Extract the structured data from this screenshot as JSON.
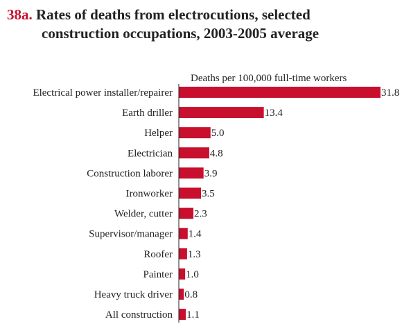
{
  "title": {
    "number": "38a.",
    "line1": "Rates of deaths from electrocutions, selected",
    "line2": "construction occupations, 2003-2005 average"
  },
  "colors": {
    "bar": "#c8102e",
    "title_number": "#c8102e",
    "axis": "#222222"
  },
  "chart_data": {
    "type": "bar",
    "orientation": "horizontal",
    "title": "Rates of deaths from electrocutions, selected construction occupations, 2003-2005 average",
    "xlabel": "Deaths per 100,000 full-time workers",
    "ylabel": "",
    "categories": [
      "Electrical power installer/repairer",
      "Earth driller",
      "Helper",
      "Electrician",
      "Construction laborer",
      "Ironworker",
      "Welder, cutter",
      "Supervisor/manager",
      "Roofer",
      "Painter",
      "Heavy truck driver",
      "All construction"
    ],
    "values": [
      31.8,
      13.4,
      5.0,
      4.8,
      3.9,
      3.5,
      2.3,
      1.4,
      1.3,
      1.0,
      0.8,
      1.1
    ],
    "value_labels": [
      "31.8",
      "13.4",
      "5.0",
      "4.8",
      "3.9",
      "3.5",
      "2.3",
      "1.4",
      "1.3",
      "1.0",
      "0.8",
      "1.1"
    ],
    "xlim": [
      0,
      31.8
    ],
    "grid": false,
    "legend": "none"
  }
}
